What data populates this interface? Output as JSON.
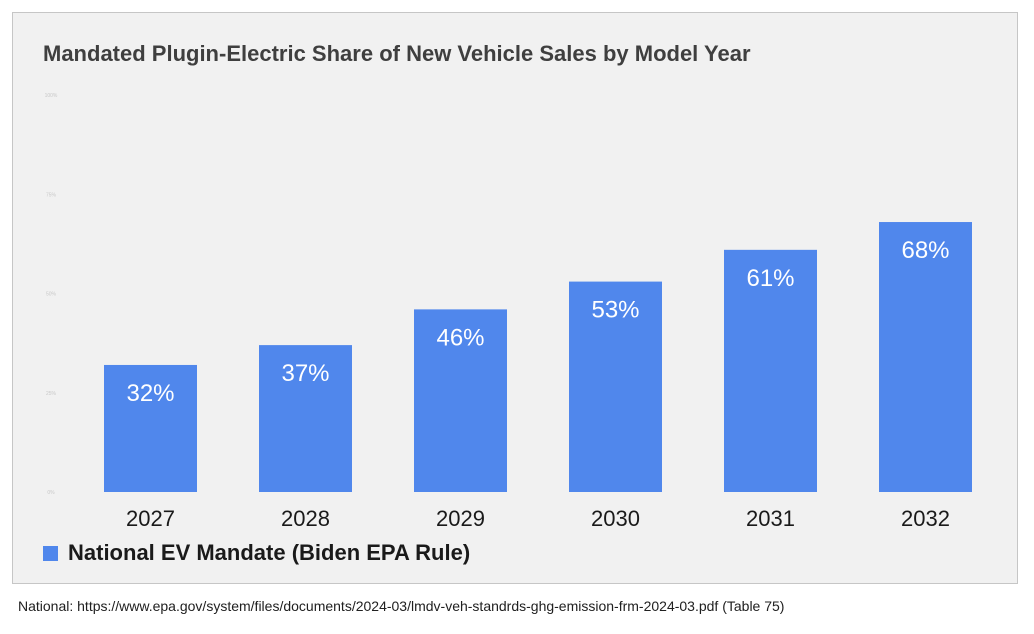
{
  "chart_data": {
    "type": "bar",
    "title": "Mandated Plugin-Electric Share of New Vehicle Sales by Model Year",
    "categories": [
      "2027",
      "2028",
      "2029",
      "2030",
      "2031",
      "2032"
    ],
    "series": [
      {
        "name": "National EV Mandate (Biden EPA Rule)",
        "values": [
          32,
          37,
          46,
          53,
          61,
          68
        ],
        "data_labels": [
          "32%",
          "37%",
          "46%",
          "53%",
          "61%",
          "68%"
        ],
        "color": "#5087ec"
      }
    ],
    "ylim": [
      0,
      100
    ],
    "yticks": [
      0,
      25,
      50,
      75,
      100
    ],
    "ytick_labels": [
      "0%",
      "25%",
      "50%",
      "75%",
      "100%"
    ],
    "xlabel": "",
    "ylabel": "",
    "grid": false,
    "legend_position": "bottom-left"
  },
  "source_note": "National: https://www.epa.gov/system/files/documents/2024-03/lmdv-veh-standrds-ghg-emission-frm-2024-03.pdf (Table 75)",
  "colors": {
    "panel_background": "#f1f1f1",
    "bar": "#5087ec",
    "title_text": "#3f3f3f",
    "data_label_text": "#ffffff"
  }
}
